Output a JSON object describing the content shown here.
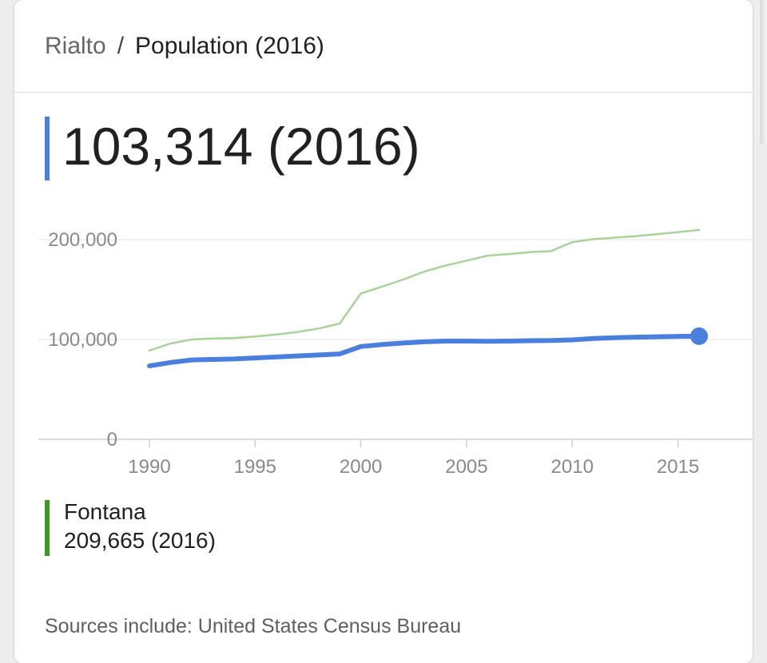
{
  "header": {
    "place": "Rialto",
    "separator": "/",
    "topic": "Population (2016)"
  },
  "headline": {
    "value": "103,314 (2016)"
  },
  "legend": {
    "name": "Fontana",
    "value": "209,665 (2016)"
  },
  "footer": {
    "sources": "Sources include: United States Census Bureau"
  },
  "colors": {
    "primary_series": "#4a7fde",
    "comparison_series": "#a8d39a",
    "legend_accent": "#3d9a1f"
  },
  "chart_data": {
    "type": "line",
    "x_ticks": [
      "1990",
      "1995",
      "2000",
      "2005",
      "2010",
      "2015"
    ],
    "y_ticks": [
      "0",
      "100,000",
      "200,000"
    ],
    "xlim": [
      1990,
      2016
    ],
    "ylim": [
      0,
      200000
    ],
    "grid": true,
    "series": [
      {
        "name": "Rialto",
        "color": "#4a7fde",
        "x": [
          1990,
          1991,
          1992,
          1993,
          1994,
          1995,
          1996,
          1997,
          1998,
          1999,
          2000,
          2001,
          2002,
          2003,
          2004,
          2005,
          2006,
          2007,
          2008,
          2009,
          2010,
          2011,
          2012,
          2013,
          2014,
          2015,
          2016
        ],
        "y": [
          73500,
          77000,
          79500,
          80000,
          80500,
          81500,
          82500,
          83500,
          84500,
          85500,
          93000,
          95000,
          96500,
          97700,
          98400,
          98400,
          98200,
          98400,
          98800,
          99000,
          99600,
          101000,
          101800,
          102300,
          102700,
          103100,
          103314
        ],
        "end_marker": true
      },
      {
        "name": "Fontana",
        "color": "#a8d39a",
        "x": [
          1990,
          1991,
          1992,
          1993,
          1994,
          1995,
          1996,
          1997,
          1998,
          1999,
          2000,
          2001,
          2002,
          2003,
          2004,
          2005,
          2006,
          2007,
          2008,
          2009,
          2010,
          2011,
          2012,
          2013,
          2014,
          2015,
          2016
        ],
        "y": [
          89000,
          96000,
          100000,
          101000,
          101500,
          103000,
          105000,
          107500,
          111000,
          116000,
          146000,
          153000,
          160000,
          168000,
          174000,
          179000,
          184000,
          185500,
          187500,
          188500,
          197500,
          200500,
          202000,
          203500,
          205500,
          207500,
          209665
        ]
      }
    ]
  }
}
